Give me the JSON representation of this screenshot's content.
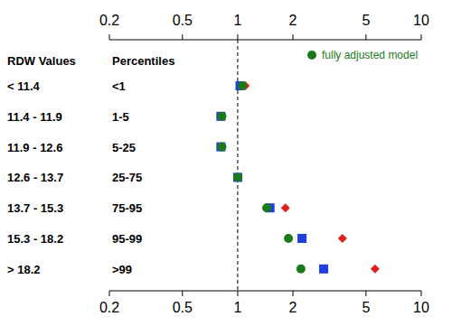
{
  "chart_data": {
    "type": "scatter",
    "log": "x",
    "legend": "top-right",
    "column_headers": [
      "RDW Values",
      "Percentiles"
    ],
    "categories": [
      "< 11.4",
      "11.4 - 11.9",
      "11.9 - 12.6",
      "12.6 - 13.7",
      "13.7 - 15.3",
      "15.3 - 18.2",
      "> 18.2"
    ],
    "percentiles": [
      "<1",
      "1-5",
      "5-25",
      "25-75",
      "75-95",
      "95-99",
      ">99"
    ],
    "xlim": [
      0.2,
      10
    ],
    "xticks": [
      0.2,
      0.5,
      1,
      2,
      5,
      10
    ],
    "reference_line": {
      "value": 1,
      "line_style": "dashed"
    },
    "series": [
      {
        "name": "fully adjusted model",
        "color": "#1a7a1a",
        "marker": "circle",
        "values": [
          1.06,
          0.82,
          0.82,
          1,
          1.44,
          1.89,
          2.21
        ]
      },
      {
        "color": "#1f3fe0",
        "marker": "square",
        "values": [
          1.03,
          0.81,
          0.81,
          1,
          1.5,
          2.24,
          2.94
        ]
      },
      {
        "color": "#e01f1f",
        "marker": "diamond",
        "values": [
          1.1,
          0.81,
          0.81,
          1,
          1.82,
          3.72,
          5.6
        ]
      }
    ]
  }
}
